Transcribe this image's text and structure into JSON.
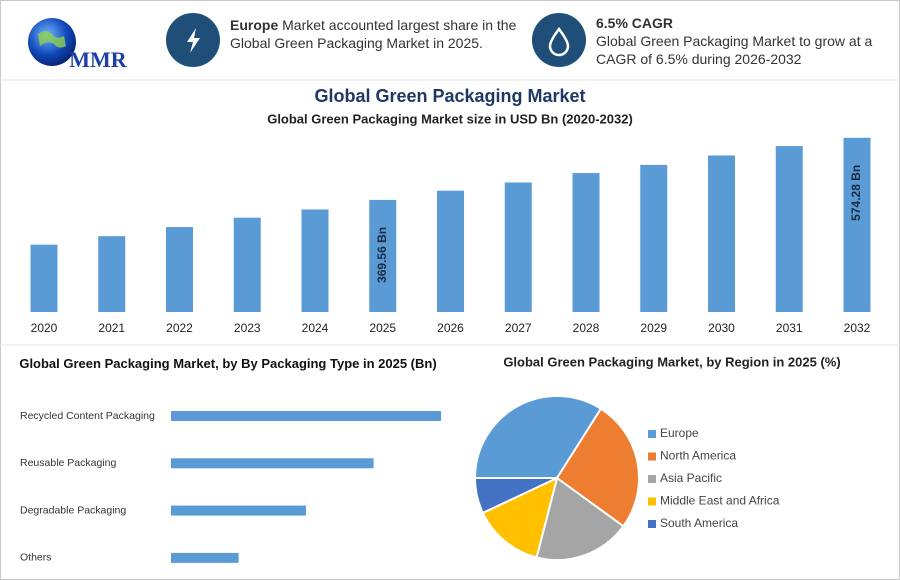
{
  "header": {
    "logo": "MMR",
    "stat1": {
      "bold": "Europe",
      "text": "Market accounted largest share in the Global Green Packaging Market in 2025."
    },
    "stat2": {
      "title": "6.5% CAGR",
      "text": "Global Green Packaging Market to grow at a CAGR of 6.5% during 2026-2032"
    },
    "title": "Global Green Packaging Market"
  },
  "chart_data": [
    {
      "type": "bar",
      "title": "Global Green Packaging Market size in USD Bn (2020-2032)",
      "categories": [
        "2020",
        "2021",
        "2022",
        "2023",
        "2024",
        "2025",
        "2026",
        "2027",
        "2028",
        "2029",
        "2030",
        "2031",
        "2032"
      ],
      "values": [
        222,
        250,
        280,
        311,
        338,
        369.56,
        400,
        427,
        458,
        485,
        516,
        547,
        574.28
      ],
      "value_labels": [
        null,
        null,
        null,
        null,
        null,
        "369.56 Bn",
        null,
        null,
        null,
        null,
        null,
        null,
        "574.28 Bn"
      ],
      "color": "#5b9bd5",
      "ylim": [
        0,
        600
      ]
    },
    {
      "type": "bar",
      "orientation": "horizontal",
      "title": "Global Green Packaging Market, by By Packaging Type in 2025 (Bn)",
      "categories": [
        "Recycled Content Packaging",
        "Reusable Packaging",
        "Degradable Packaging",
        "Others"
      ],
      "values": [
        147.8,
        110.9,
        73.9,
        37.0
      ],
      "color": "#5b9bd5",
      "xlim": [
        0,
        150
      ]
    },
    {
      "type": "pie",
      "title": "Global Green Packaging Market, by Region in 2025 (%)",
      "categories": [
        "Europe",
        "North America",
        "Asia Pacific",
        "Middle East and Africa",
        "South America"
      ],
      "values": [
        34,
        26,
        19,
        14,
        7
      ],
      "colors": [
        "#5b9bd5",
        "#ed7d31",
        "#a5a5a5",
        "#ffc000",
        "#4472c4"
      ],
      "legend": "right"
    }
  ]
}
